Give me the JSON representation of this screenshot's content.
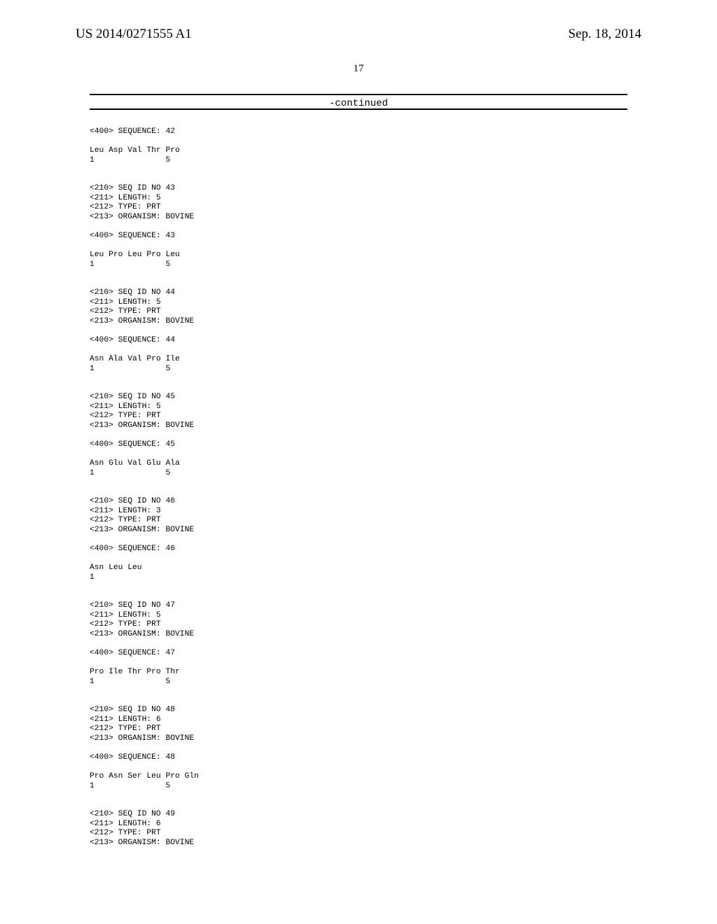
{
  "header": {
    "pub_number": "US 2014/0271555 A1",
    "pub_date": "Sep. 18, 2014"
  },
  "page_number": "17",
  "continued_label": "-continued",
  "seq_listing": "<400> SEQUENCE: 42\n\nLeu Asp Val Thr Pro\n1               5\n\n\n<210> SEQ ID NO 43\n<211> LENGTH: 5\n<212> TYPE: PRT\n<213> ORGANISM: BOVINE\n\n<400> SEQUENCE: 43\n\nLeu Pro Leu Pro Leu\n1               5\n\n\n<210> SEQ ID NO 44\n<211> LENGTH: 5\n<212> TYPE: PRT\n<213> ORGANISM: BOVINE\n\n<400> SEQUENCE: 44\n\nAsn Ala Val Pro Ile\n1               5\n\n\n<210> SEQ ID NO 45\n<211> LENGTH: 5\n<212> TYPE: PRT\n<213> ORGANISM: BOVINE\n\n<400> SEQUENCE: 45\n\nAsn Glu Val Glu Ala\n1               5\n\n\n<210> SEQ ID NO 46\n<211> LENGTH: 3\n<212> TYPE: PRT\n<213> ORGANISM: BOVINE\n\n<400> SEQUENCE: 46\n\nAsn Leu Leu\n1\n\n\n<210> SEQ ID NO 47\n<211> LENGTH: 5\n<212> TYPE: PRT\n<213> ORGANISM: BOVINE\n\n<400> SEQUENCE: 47\n\nPro Ile Thr Pro Thr\n1               5\n\n\n<210> SEQ ID NO 48\n<211> LENGTH: 6\n<212> TYPE: PRT\n<213> ORGANISM: BOVINE\n\n<400> SEQUENCE: 48\n\nPro Asn Ser Leu Pro Gln\n1               5\n\n\n<210> SEQ ID NO 49\n<211> LENGTH: 6\n<212> TYPE: PRT\n<213> ORGANISM: BOVINE"
}
